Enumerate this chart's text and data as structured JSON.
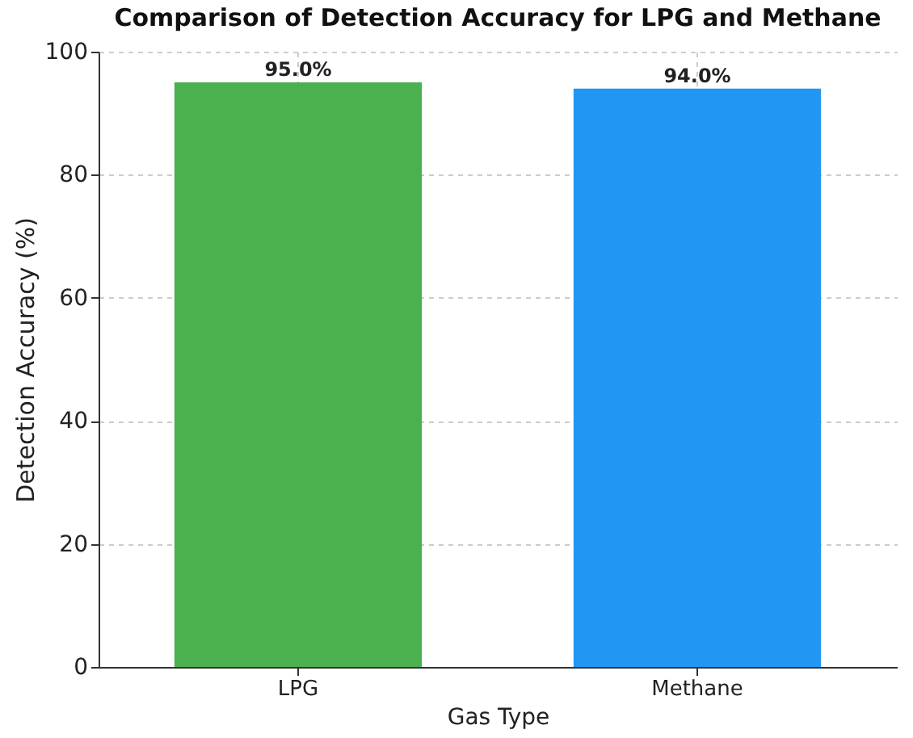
{
  "chart_data": {
    "type": "bar",
    "title": "Comparison of Detection Accuracy for LPG and Methane",
    "xlabel": "Gas Type",
    "ylabel": "Detection Accuracy (%)",
    "categories": [
      "LPG",
      "Methane"
    ],
    "values": [
      95.0,
      94.0
    ],
    "colors": [
      "#4caf50",
      "#2196f3"
    ],
    "value_labels": [
      "95.0%",
      "94.0%"
    ],
    "ylim": [
      0,
      100
    ],
    "yticks": [
      0,
      20,
      40,
      60,
      80,
      100
    ],
    "grid": true
  }
}
